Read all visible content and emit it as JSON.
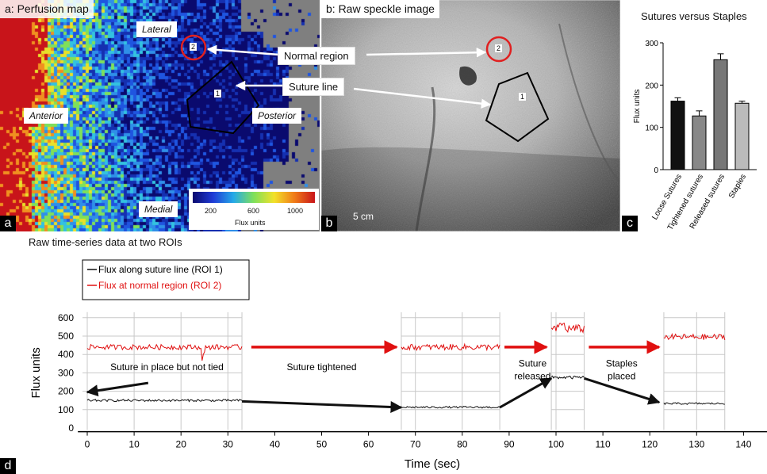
{
  "panel_a": {
    "letter": "a",
    "title": "a: Perfusion map",
    "labels": {
      "lateral": "Lateral",
      "anterior": "Anterior",
      "posterior": "Posterior",
      "medial": "Medial"
    },
    "roi_labels": [
      "1",
      "2"
    ],
    "colorbar": {
      "ticks": [
        "200",
        "600",
        "1000"
      ],
      "label": "Flux units"
    }
  },
  "panel_b": {
    "letter": "b",
    "title": "b: Raw speckle image",
    "scale": "5 cm",
    "roi_labels": [
      "2",
      "1"
    ]
  },
  "callouts": {
    "normal": "Normal region",
    "suture": "Suture line"
  },
  "panel_c": {
    "letter": "c"
  },
  "panel_d": {
    "letter": "d",
    "title": "Raw time-series data at two ROIs"
  },
  "chart_data": [
    {
      "type": "bar",
      "title": "Sutures versus Staples",
      "categories": [
        "Loose Sutures",
        "Tightened sutures",
        "Released sutures",
        "Staples"
      ],
      "values": [
        162,
        127,
        260,
        157
      ],
      "errors": [
        8,
        12,
        14,
        5
      ],
      "colors": [
        "#111111",
        "#888888",
        "#777777",
        "#bbbbbb"
      ],
      "ylabel": "Flux units",
      "ylim": [
        0,
        300
      ],
      "yticks": [
        0,
        100,
        200,
        300
      ]
    },
    {
      "type": "line",
      "xlabel": "Time (sec)",
      "ylabel": "Flux units",
      "xlim": [
        -2,
        150
      ],
      "ylim": [
        -20,
        660
      ],
      "xticks": [
        0,
        10,
        20,
        30,
        40,
        50,
        60,
        70,
        80,
        90,
        100,
        110,
        120,
        130,
        140
      ],
      "yticks": [
        0,
        100,
        200,
        300,
        400,
        500,
        600
      ],
      "series": [
        {
          "name": "Flux along suture line (ROI 1)",
          "color": "#111111",
          "segments": [
            {
              "t0": 0,
              "t1": 33,
              "mean": 150,
              "noise": 6
            },
            {
              "t0": 67,
              "t1": 88,
              "mean": 113,
              "noise": 5
            },
            {
              "t0": 99,
              "t1": 106,
              "mean": 275,
              "noise": 8
            },
            {
              "t0": 123,
              "t1": 136,
              "mean": 133,
              "noise": 5
            }
          ]
        },
        {
          "name": "Flux at normal region (ROI 2)",
          "color": "#e01010",
          "segments": [
            {
              "t0": 0,
              "t1": 33,
              "mean": 440,
              "noise": 14
            },
            {
              "t0": 67,
              "t1": 88,
              "mean": 440,
              "noise": 16
            },
            {
              "t0": 99,
              "t1": 106,
              "mean": 540,
              "noise": 22
            },
            {
              "t0": 123,
              "t1": 136,
              "mean": 495,
              "noise": 16
            }
          ]
        }
      ],
      "annotations": [
        "Suture in place but not tied",
        "Suture tightened",
        "Suture released",
        "Staples placed"
      ]
    }
  ]
}
